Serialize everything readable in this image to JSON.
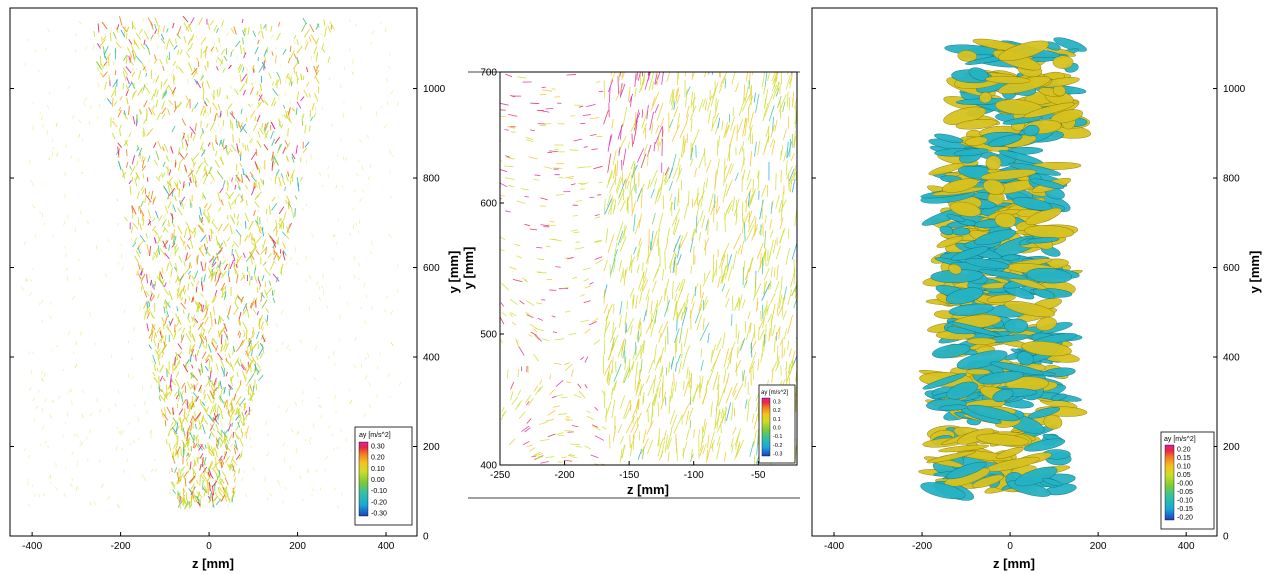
{
  "colors": {
    "scale": [
      "#1f3fbf",
      "#1aa7d6",
      "#36c2a0",
      "#7cc93a",
      "#cddc28",
      "#f5c21e",
      "#f07a22",
      "#e8224a",
      "#e21fa6"
    ],
    "iso_positive": "#d7c21f",
    "iso_negative": "#25b3c4",
    "axis": "#000000"
  },
  "chart_data": [
    {
      "type": "vector-field",
      "panel": "left",
      "xlabel": "z [mm]",
      "ylabel": "y [mm]",
      "xlim": [
        -450,
        470
      ],
      "ylim": [
        0,
        1180
      ],
      "xticks": [
        -400,
        -200,
        0,
        200,
        400
      ],
      "yticks": [
        0,
        200,
        400,
        600,
        800,
        1000
      ],
      "legend": {
        "title": "ay [m/s^2]",
        "placement": "bottom-right",
        "labels": [
          "0.30",
          "0.20",
          "0.10",
          "0.00",
          "-0.10",
          "-0.20",
          "-0.30"
        ],
        "range": [
          -0.3,
          0.3
        ]
      }
    },
    {
      "type": "vector-field",
      "panel": "center",
      "xlabel": "z [mm]",
      "ylabel": "y [mm]",
      "xlim": [
        -250,
        -20
      ],
      "ylim": [
        400,
        700
      ],
      "xticks": [
        -250,
        -200,
        -150,
        -100,
        -50
      ],
      "yticks": [
        400,
        500,
        600,
        700
      ],
      "legend": {
        "title": "ay [m/s^2]",
        "placement": "bottom-right",
        "labels": [
          "0.3",
          "0.2",
          "0.1",
          "0.0",
          "-0.1",
          "-0.2",
          "-0.3"
        ],
        "range": [
          -0.3,
          0.3
        ]
      }
    },
    {
      "type": "isosurface",
      "panel": "right",
      "xlabel": "z [mm]",
      "ylabel": "y [mm]",
      "xlim": [
        -450,
        470
      ],
      "ylim": [
        0,
        1180
      ],
      "xticks": [
        -400,
        -200,
        0,
        200,
        400
      ],
      "yticks": [
        0,
        200,
        400,
        600,
        800,
        1000
      ],
      "legend": {
        "title": "ay [m/s^2]",
        "placement": "bottom-right",
        "labels": [
          "0.20",
          "0.15",
          "0.10",
          "0.05",
          "-0.00",
          "-0.05",
          "-0.10",
          "-0.15",
          "-0.20"
        ],
        "range": [
          -0.2,
          0.2
        ]
      }
    }
  ]
}
